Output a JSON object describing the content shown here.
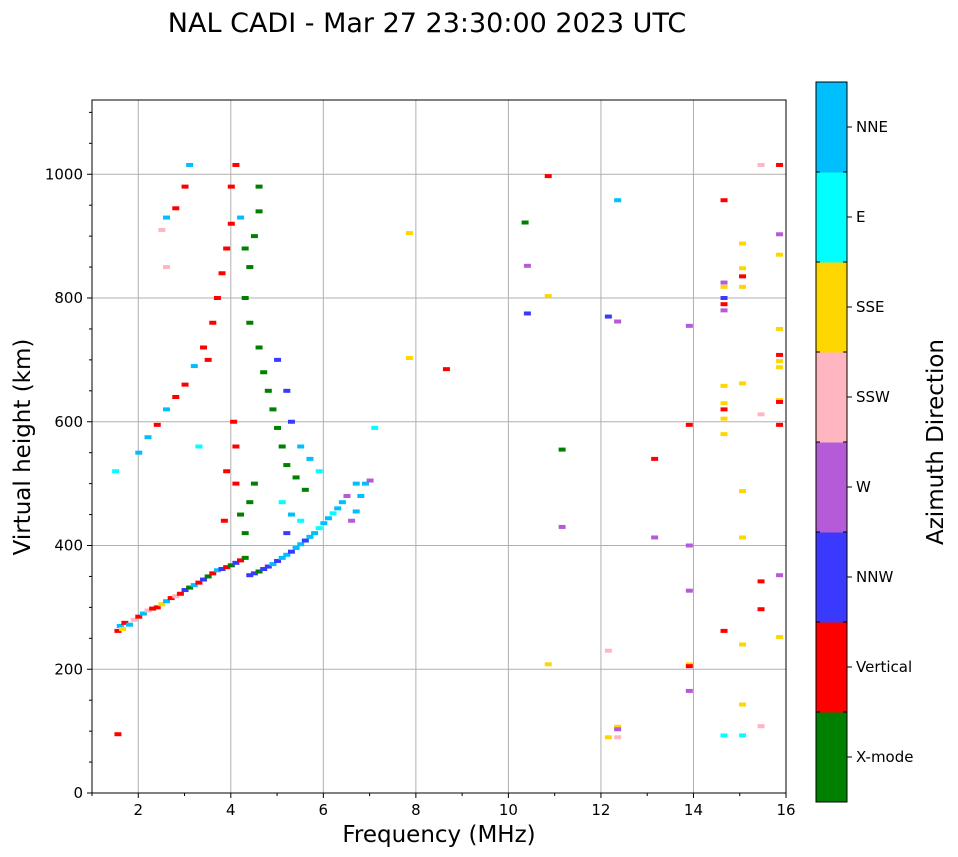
{
  "chart_data": {
    "type": "scatter",
    "title": "NAL CADI - Mar 27 23:30:00 2023 UTC",
    "xlabel": "Frequency (MHz)",
    "ylabel": "Virtual height (km)",
    "xlim": [
      1,
      16
    ],
    "ylim": [
      0,
      1120
    ],
    "xticks": [
      2,
      4,
      6,
      8,
      10,
      12,
      14,
      16
    ],
    "xtick_labels": [
      "2",
      "4",
      "6",
      "8",
      "10",
      "12",
      "14",
      "16"
    ],
    "yticks": [
      0,
      200,
      400,
      600,
      800,
      1000
    ],
    "ytick_labels": [
      "0",
      "200",
      "400",
      "600",
      "800",
      "1000"
    ],
    "grid": true,
    "colorbar": {
      "label": "Azimuth Direction",
      "categories": [
        {
          "name": "X-mode",
          "color": "#008000"
        },
        {
          "name": "Vertical",
          "color": "#ff0000"
        },
        {
          "name": "NNW",
          "color": "#3a3aff"
        },
        {
          "name": "W",
          "color": "#b65bd8"
        },
        {
          "name": "SSW",
          "color": "#ffb6c1"
        },
        {
          "name": "SSE",
          "color": "#ffd700"
        },
        {
          "name": "E",
          "color": "#00ffff"
        },
        {
          "name": "NNE",
          "color": "#00bfff"
        }
      ]
    },
    "points": [
      [
        1.55,
        95,
        "Vertical"
      ],
      [
        1.55,
        262,
        "Vertical"
      ],
      [
        1.6,
        270,
        "NNE"
      ],
      [
        1.65,
        265,
        "SSE"
      ],
      [
        1.7,
        275,
        "Vertical"
      ],
      [
        1.8,
        272,
        "NNE"
      ],
      [
        1.9,
        280,
        "SSW"
      ],
      [
        2.0,
        285,
        "Vertical"
      ],
      [
        2.1,
        290,
        "NNE"
      ],
      [
        2.2,
        295,
        "SSW"
      ],
      [
        2.3,
        298,
        "Vertical"
      ],
      [
        2.4,
        300,
        "Vertical"
      ],
      [
        2.5,
        305,
        "SSE"
      ],
      [
        2.6,
        310,
        "NNE"
      ],
      [
        2.7,
        315,
        "Vertical"
      ],
      [
        2.8,
        318,
        "SSW"
      ],
      [
        2.9,
        322,
        "Vertical"
      ],
      [
        3.0,
        328,
        "NNW"
      ],
      [
        3.1,
        332,
        "X-mode"
      ],
      [
        3.2,
        336,
        "NNE"
      ],
      [
        3.3,
        340,
        "Vertical"
      ],
      [
        3.4,
        345,
        "NNW"
      ],
      [
        3.5,
        350,
        "X-mode"
      ],
      [
        3.6,
        355,
        "Vertical"
      ],
      [
        3.7,
        360,
        "NNE"
      ],
      [
        3.8,
        362,
        "NNW"
      ],
      [
        3.9,
        365,
        "Vertical"
      ],
      [
        4.0,
        368,
        "X-mode"
      ],
      [
        4.1,
        372,
        "NNW"
      ],
      [
        4.2,
        376,
        "Vertical"
      ],
      [
        4.3,
        380,
        "X-mode"
      ],
      [
        4.4,
        352,
        "NNW"
      ],
      [
        4.5,
        355,
        "NNW"
      ],
      [
        4.6,
        358,
        "X-mode"
      ],
      [
        4.7,
        362,
        "NNW"
      ],
      [
        4.8,
        366,
        "NNW"
      ],
      [
        4.9,
        370,
        "NNE"
      ],
      [
        5.0,
        375,
        "NNW"
      ],
      [
        5.1,
        380,
        "NNE"
      ],
      [
        5.2,
        385,
        "NNE"
      ],
      [
        5.3,
        390,
        "NNW"
      ],
      [
        5.4,
        396,
        "NNE"
      ],
      [
        5.5,
        402,
        "NNE"
      ],
      [
        5.6,
        408,
        "NNW"
      ],
      [
        5.7,
        414,
        "NNE"
      ],
      [
        5.8,
        420,
        "NNE"
      ],
      [
        5.9,
        428,
        "E"
      ],
      [
        6.0,
        436,
        "NNE"
      ],
      [
        6.1,
        444,
        "NNE"
      ],
      [
        6.2,
        452,
        "E"
      ],
      [
        6.3,
        460,
        "NNE"
      ],
      [
        6.4,
        470,
        "NNE"
      ],
      [
        6.5,
        480,
        "W"
      ],
      [
        6.6,
        440,
        "W"
      ],
      [
        6.7,
        455,
        "NNE"
      ],
      [
        6.7,
        500,
        "NNE"
      ],
      [
        6.8,
        480,
        "NNE"
      ],
      [
        6.9,
        500,
        "NNE"
      ],
      [
        7.0,
        505,
        "W"
      ],
      [
        7.1,
        590,
        "E"
      ],
      [
        2.0,
        550,
        "NNE"
      ],
      [
        2.2,
        575,
        "NNE"
      ],
      [
        2.4,
        595,
        "Vertical"
      ],
      [
        2.6,
        620,
        "NNE"
      ],
      [
        2.8,
        640,
        "Vertical"
      ],
      [
        3.0,
        660,
        "Vertical"
      ],
      [
        3.2,
        690,
        "NNE"
      ],
      [
        3.4,
        720,
        "Vertical"
      ],
      [
        3.6,
        760,
        "Vertical"
      ],
      [
        3.7,
        800,
        "Vertical"
      ],
      [
        3.8,
        840,
        "Vertical"
      ],
      [
        3.9,
        880,
        "Vertical"
      ],
      [
        4.0,
        920,
        "Vertical"
      ],
      [
        4.0,
        980,
        "Vertical"
      ],
      [
        4.1,
        1015,
        "Vertical"
      ],
      [
        4.05,
        600,
        "Vertical"
      ],
      [
        4.1,
        560,
        "Vertical"
      ],
      [
        4.1,
        500,
        "Vertical"
      ],
      [
        3.9,
        520,
        "Vertical"
      ],
      [
        3.85,
        440,
        "Vertical"
      ],
      [
        4.3,
        880,
        "X-mode"
      ],
      [
        4.4,
        850,
        "X-mode"
      ],
      [
        4.6,
        980,
        "X-mode"
      ],
      [
        4.6,
        940,
        "X-mode"
      ],
      [
        4.5,
        900,
        "X-mode"
      ],
      [
        4.3,
        800,
        "X-mode"
      ],
      [
        4.4,
        760,
        "X-mode"
      ],
      [
        4.6,
        720,
        "X-mode"
      ],
      [
        4.7,
        680,
        "X-mode"
      ],
      [
        4.8,
        650,
        "X-mode"
      ],
      [
        4.9,
        620,
        "X-mode"
      ],
      [
        5.0,
        590,
        "X-mode"
      ],
      [
        5.1,
        560,
        "X-mode"
      ],
      [
        5.2,
        530,
        "X-mode"
      ],
      [
        5.4,
        510,
        "X-mode"
      ],
      [
        5.6,
        490,
        "X-mode"
      ],
      [
        4.5,
        500,
        "X-mode"
      ],
      [
        4.4,
        470,
        "X-mode"
      ],
      [
        4.2,
        450,
        "X-mode"
      ],
      [
        4.3,
        420,
        "X-mode"
      ],
      [
        5.0,
        700,
        "NNW"
      ],
      [
        5.2,
        650,
        "NNW"
      ],
      [
        5.3,
        600,
        "NNW"
      ],
      [
        5.5,
        560,
        "NNE"
      ],
      [
        5.7,
        540,
        "NNE"
      ],
      [
        5.9,
        520,
        "E"
      ],
      [
        5.1,
        470,
        "E"
      ],
      [
        5.3,
        450,
        "NNE"
      ],
      [
        5.5,
        440,
        "E"
      ],
      [
        5.2,
        420,
        "NNW"
      ],
      [
        1.5,
        520,
        "E"
      ],
      [
        2.5,
        910,
        "SSW"
      ],
      [
        2.6,
        930,
        "NNE"
      ],
      [
        2.6,
        850,
        "SSW"
      ],
      [
        2.8,
        945,
        "Vertical"
      ],
      [
        3.0,
        980,
        "Vertical"
      ],
      [
        3.1,
        1015,
        "NNE"
      ],
      [
        4.2,
        930,
        "NNE"
      ],
      [
        3.5,
        700,
        "Vertical"
      ],
      [
        3.3,
        560,
        "E"
      ],
      [
        7.85,
        905,
        "SSE"
      ],
      [
        7.85,
        703,
        "SSE"
      ],
      [
        8.65,
        685,
        "Vertical"
      ],
      [
        10.35,
        922,
        "X-mode"
      ],
      [
        10.4,
        852,
        "W"
      ],
      [
        10.4,
        775,
        "NNW"
      ],
      [
        10.85,
        997,
        "Vertical"
      ],
      [
        10.85,
        803,
        "SSE"
      ],
      [
        10.85,
        208,
        "SSE"
      ],
      [
        11.15,
        555,
        "X-mode"
      ],
      [
        11.15,
        430,
        "W"
      ],
      [
        12.35,
        958,
        "NNE"
      ],
      [
        12.15,
        770,
        "NNW"
      ],
      [
        12.35,
        762,
        "W"
      ],
      [
        12.15,
        230,
        "SSW"
      ],
      [
        12.35,
        107,
        "SSE"
      ],
      [
        12.35,
        103,
        "W"
      ],
      [
        12.15,
        90,
        "SSE"
      ],
      [
        12.35,
        90,
        "SSW"
      ],
      [
        13.15,
        540,
        "Vertical"
      ],
      [
        13.15,
        413,
        "W"
      ],
      [
        13.9,
        755,
        "W"
      ],
      [
        13.9,
        595,
        "Vertical"
      ],
      [
        13.9,
        400,
        "W"
      ],
      [
        13.9,
        327,
        "W"
      ],
      [
        13.9,
        208,
        "SSE"
      ],
      [
        13.9,
        205,
        "Vertical"
      ],
      [
        13.9,
        165,
        "W"
      ],
      [
        14.65,
        958,
        "Vertical"
      ],
      [
        14.65,
        825,
        "W"
      ],
      [
        14.65,
        818,
        "SSE"
      ],
      [
        14.65,
        800,
        "NNW"
      ],
      [
        14.65,
        790,
        "Vertical"
      ],
      [
        14.65,
        780,
        "W"
      ],
      [
        14.65,
        658,
        "SSE"
      ],
      [
        14.65,
        630,
        "SSE"
      ],
      [
        14.65,
        620,
        "Vertical"
      ],
      [
        14.65,
        605,
        "SSE"
      ],
      [
        14.65,
        580,
        "SSE"
      ],
      [
        14.65,
        262,
        "Vertical"
      ],
      [
        14.65,
        93,
        "E"
      ],
      [
        15.05,
        888,
        "SSE"
      ],
      [
        15.05,
        848,
        "SSE"
      ],
      [
        15.05,
        835,
        "Vertical"
      ],
      [
        15.05,
        818,
        "SSE"
      ],
      [
        15.05,
        662,
        "SSE"
      ],
      [
        15.05,
        488,
        "SSE"
      ],
      [
        15.05,
        413,
        "SSE"
      ],
      [
        15.05,
        240,
        "SSE"
      ],
      [
        15.05,
        143,
        "SSE"
      ],
      [
        15.05,
        93,
        "E"
      ],
      [
        15.45,
        1015,
        "SSW"
      ],
      [
        15.45,
        612,
        "SSW"
      ],
      [
        15.45,
        342,
        "Vertical"
      ],
      [
        15.45,
        297,
        "Vertical"
      ],
      [
        15.45,
        108,
        "SSW"
      ],
      [
        15.85,
        1015,
        "Vertical"
      ],
      [
        15.85,
        903,
        "W"
      ],
      [
        15.85,
        870,
        "SSE"
      ],
      [
        15.85,
        750,
        "SSE"
      ],
      [
        15.85,
        708,
        "Vertical"
      ],
      [
        15.85,
        698,
        "SSE"
      ],
      [
        15.85,
        688,
        "SSE"
      ],
      [
        15.85,
        635,
        "SSE"
      ],
      [
        15.85,
        632,
        "Vertical"
      ],
      [
        15.85,
        595,
        "Vertical"
      ],
      [
        15.85,
        352,
        "W"
      ],
      [
        15.85,
        252,
        "SSE"
      ]
    ]
  }
}
